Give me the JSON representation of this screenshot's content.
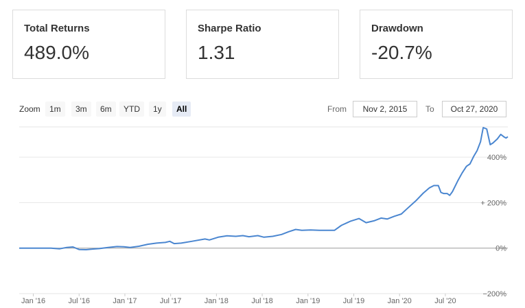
{
  "metrics": [
    {
      "label": "Total Returns",
      "value": "489.0%"
    },
    {
      "label": "Sharpe Ratio",
      "value": "1.31"
    },
    {
      "label": "Drawdown",
      "value": "-20.7%"
    }
  ],
  "zoom": {
    "label": "Zoom",
    "buttons": [
      "1m",
      "3m",
      "6m",
      "YTD",
      "1y",
      "All"
    ],
    "active": "All"
  },
  "range": {
    "from_label": "From",
    "from_value": "Nov 2, 2015",
    "to_label": "To",
    "to_value": "Oct 27, 2020"
  },
  "colors": {
    "line": "#4a86d0",
    "grid": "#e6e6e6",
    "zero_line": "#999999"
  },
  "chart_data": {
    "type": "line",
    "series": [
      {
        "values": [
          [
            2015.84,
            0
          ],
          [
            2015.95,
            0
          ],
          [
            2016.05,
            0
          ],
          [
            2016.2,
            0
          ],
          [
            2016.3,
            -3
          ],
          [
            2016.38,
            3
          ],
          [
            2016.45,
            5
          ],
          [
            2016.52,
            -6
          ],
          [
            2016.6,
            -7
          ],
          [
            2016.68,
            -4
          ],
          [
            2016.75,
            -2
          ],
          [
            2016.85,
            3
          ],
          [
            2016.95,
            7
          ],
          [
            2017.03,
            6
          ],
          [
            2017.1,
            3
          ],
          [
            2017.2,
            8
          ],
          [
            2017.3,
            17
          ],
          [
            2017.4,
            22
          ],
          [
            2017.5,
            25
          ],
          [
            2017.55,
            30
          ],
          [
            2017.6,
            20
          ],
          [
            2017.68,
            22
          ],
          [
            2017.8,
            30
          ],
          [
            2017.95,
            40
          ],
          [
            2018.0,
            36
          ],
          [
            2018.1,
            48
          ],
          [
            2018.2,
            54
          ],
          [
            2018.3,
            52
          ],
          [
            2018.38,
            55
          ],
          [
            2018.45,
            50
          ],
          [
            2018.55,
            55
          ],
          [
            2018.62,
            48
          ],
          [
            2018.72,
            52
          ],
          [
            2018.82,
            60
          ],
          [
            2018.9,
            72
          ],
          [
            2018.98,
            82
          ],
          [
            2019.05,
            78
          ],
          [
            2019.15,
            80
          ],
          [
            2019.25,
            78
          ],
          [
            2019.35,
            78
          ],
          [
            2019.42,
            78
          ],
          [
            2019.5,
            100
          ],
          [
            2019.6,
            118
          ],
          [
            2019.7,
            130
          ],
          [
            2019.78,
            112
          ],
          [
            2019.87,
            120
          ],
          [
            2019.95,
            132
          ],
          [
            2020.02,
            128
          ],
          [
            2020.1,
            140
          ],
          [
            2020.18,
            150
          ],
          [
            2020.25,
            175
          ],
          [
            2020.35,
            210
          ],
          [
            2020.43,
            242
          ],
          [
            2020.5,
            265
          ],
          [
            2020.55,
            275
          ],
          [
            2020.6,
            275
          ],
          [
            2020.63,
            245
          ],
          [
            2020.66,
            240
          ],
          [
            2020.7,
            240
          ],
          [
            2020.73,
            232
          ],
          [
            2020.76,
            248
          ],
          [
            2020.82,
            295
          ],
          [
            2020.87,
            330
          ],
          [
            2020.92,
            360
          ],
          [
            2020.96,
            370
          ],
          [
            2021.0,
            402
          ],
          [
            2021.04,
            428
          ],
          [
            2021.08,
            468
          ],
          [
            2021.11,
            530
          ],
          [
            2021.15,
            524
          ],
          [
            2021.19,
            455
          ],
          [
            2021.22,
            462
          ],
          [
            2021.27,
            480
          ],
          [
            2021.31,
            500
          ],
          [
            2021.35,
            488
          ],
          [
            2021.37,
            484
          ],
          [
            2021.39,
            490
          ]
        ]
      }
    ],
    "x_ticks": [
      "Jan '16",
      "Jul '16",
      "Jan '17",
      "Jul '17",
      "Jan '18",
      "Jul '18",
      "Jan '19",
      "Jul '19",
      "Jan '20",
      "Jul '20"
    ],
    "y_ticks": [
      "400%",
      "+ 200%",
      "0%",
      "−200%"
    ],
    "y_tick_values": [
      400,
      200,
      0,
      -200
    ],
    "ylim": [
      -200,
      530
    ],
    "grid": true,
    "xlabel": "",
    "ylabel": ""
  }
}
